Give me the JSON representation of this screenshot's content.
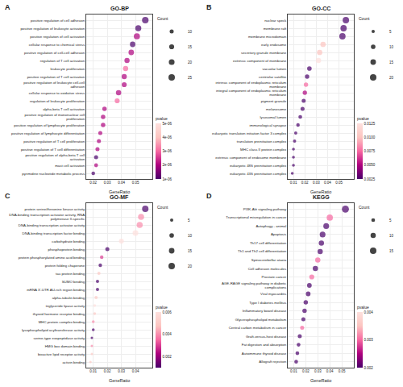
{
  "chart_data": [
    {
      "type": "scatter",
      "title": "GO-BP",
      "annotations": [
        "A"
      ],
      "orientation": "horizontal",
      "categories": [
        "positive regulation of cell adhesion",
        "positive regulation of leukocyte activation",
        "positive regulation of cell activation",
        "cellular response to chemical stress",
        "positive regulation of cell-cell adhesion",
        "regulation of T cell activation",
        "leukocyte proliferation",
        "positive regulation of T cell activation",
        "positive regulation of leukocyte cell-cell\nadhesion",
        "cellular response to oxidative stress",
        "regulation of leukocyte proliferation",
        "alpha-beta T cell activation",
        "positive regulation of mononuclear cell\nproliferation",
        "positive regulation of lymphocyte proliferation",
        "positive regulation of lymphocyte differentiation",
        "positive regulation of T cell proliferation",
        "positive regulation of T cell differentiation",
        "positive regulation of alpha-beta T cell\nactivation",
        "mast cell activation",
        "pyrimidine nucleotide metabolic process"
      ],
      "values": [
        0.057,
        0.052,
        0.051,
        0.048,
        0.047,
        0.044,
        0.043,
        0.042,
        0.042,
        0.038,
        0.037,
        0.028,
        0.027,
        0.027,
        0.025,
        0.024,
        0.023,
        0.022,
        0.022,
        0.02
      ],
      "sizes": [
        26,
        22,
        23,
        18,
        18,
        16,
        16,
        16,
        15,
        17,
        15,
        12,
        12,
        12,
        10,
        10,
        10,
        10,
        9,
        8
      ],
      "size_title": "Count",
      "size_legend": [
        10,
        15,
        20,
        25
      ],
      "color_values": [
        1e-06,
        1e-06,
        2e-06,
        1e-06,
        2e-06,
        2e-06,
        3e-06,
        2e-06,
        2e-06,
        2e-06,
        3e-06,
        2e-06,
        2e-06,
        2e-06,
        2e-06,
        2e-06,
        2e-06,
        1e-06,
        2e-06,
        1e-06
      ],
      "color_title": "pvalue",
      "color_range": [
        1e-06,
        5e-06
      ],
      "color_ticks": [
        {
          "value": 1e-06,
          "label": "1e-06"
        },
        {
          "value": 2e-06,
          "label": "2e-06"
        },
        {
          "value": 3e-06,
          "label": "3e-06"
        },
        {
          "value": 4e-06,
          "label": "4e-06"
        },
        {
          "value": 5e-06,
          "label": "5e-06"
        }
      ],
      "x_label": "GeneRatio",
      "xlim": [
        0.015,
        0.062
      ],
      "xticks": [
        0.02,
        0.03,
        0.04,
        0.05
      ],
      "grid": true
    },
    {
      "type": "scatter",
      "title": "GO-CC",
      "annotations": [
        "B"
      ],
      "orientation": "horizontal",
      "categories": [
        "nuclear speck",
        "membrane raft",
        "membrane microdomain",
        "early endosome",
        "secretory granule membrane",
        "extrinsic component of membrane",
        "vacuolar lumen",
        "centriolar satellite",
        "intrinsic component of endoplasmic reticulum\nmembrane",
        "integral component of endoplasmic reticulum\nmembrane",
        "pigment granule",
        "melanosome",
        "lysosomal lumen",
        "immunological synapse",
        "eukaryotic translation initiation factor 3 complex",
        "translation preinitiation complex",
        "MHC class II protein complex",
        "extrinsic component of endosome membrane",
        "eukaryotic 48S preinitiation complex",
        "eukaryotic 43S preinitiation complex"
      ],
      "values": [
        0.056,
        0.054,
        0.053,
        0.036,
        0.033,
        0.032,
        0.024,
        0.022,
        0.021,
        0.02,
        0.019,
        0.018,
        0.016,
        0.014,
        0.012,
        0.011,
        0.01,
        0.01,
        0.01,
        0.009
      ],
      "sizes": [
        20,
        19,
        19,
        14,
        14,
        13,
        10,
        9,
        9,
        9,
        8,
        8,
        7,
        6,
        5,
        5,
        4,
        4,
        4,
        4
      ],
      "size_title": "Count",
      "size_legend": [
        5,
        10,
        15,
        20
      ],
      "color_values": [
        0.0025,
        0.0025,
        0.0025,
        0.01,
        0.01,
        0.0125,
        0.0025,
        0.0025,
        0.0075,
        0.005,
        0.0025,
        0.0025,
        0.0025,
        0.0025,
        0.0025,
        0.0025,
        0.0025,
        0.0025,
        0.0025,
        0.0025
      ],
      "color_title": "pvalue",
      "color_range": [
        0.0025,
        0.0125
      ],
      "color_ticks": [
        0.0025,
        {
          "value": 0.005,
          "label": "0.0050"
        },
        0.0075,
        {
          "value": 0.01,
          "label": "0.0100"
        },
        0.0125
      ],
      "x_label": "GeneRatio",
      "xlim": [
        0.005,
        0.063
      ],
      "xticks": [
        0.01,
        0.02,
        0.03,
        0.04,
        0.05
      ],
      "grid": true
    },
    {
      "type": "scatter",
      "title": "GO-MF",
      "annotations": [
        "C"
      ],
      "orientation": "horizontal",
      "categories": [
        "protein serine/threonine kinase activity",
        "DNA-binding transcription activator activity, RNA\npolymerase II-specific",
        "DNA-binding transcription activator activity",
        "DNA-binding transcription factor binding",
        "carbohydrate binding",
        "phosphoprotein binding",
        "protein phosphorylated amino acid binding",
        "protein folding chaperone",
        "tau protein binding",
        "SUMO binding",
        "mRNA 3'-UTR AU-rich region binding",
        "alpha-tubulin binding",
        "triglyceride lipase activity",
        "thyroid hormone receptor binding",
        "MHC protein complex binding",
        "lysophospholipid acyltransferase activity",
        "serine-type exopeptidase activity",
        "HMG box domain binding",
        "bioactive lipid receptor activity",
        "activin binding"
      ],
      "values": [
        0.047,
        0.044,
        0.043,
        0.04,
        0.03,
        0.02,
        0.016,
        0.015,
        0.014,
        0.013,
        0.013,
        0.012,
        0.011,
        0.011,
        0.01,
        0.01,
        0.009,
        0.009,
        0.009,
        0.008
      ],
      "sizes": [
        20,
        18,
        18,
        16,
        12,
        8,
        6,
        6,
        5,
        5,
        5,
        5,
        4,
        4,
        4,
        4,
        3,
        3,
        3,
        3
      ],
      "size_title": "Count",
      "size_legend": [
        5,
        10,
        15,
        20
      ],
      "color_values": [
        0.001,
        0.004,
        0.004,
        0.006,
        0.006,
        0.001,
        0.003,
        0.001,
        0.005,
        0.001,
        0.001,
        0.005,
        0.006,
        0.005,
        0.004,
        0.001,
        0.001,
        0.004,
        0.005,
        0.005
      ],
      "color_title": "pvalue",
      "color_range": [
        0.001,
        0.006
      ],
      "color_ticks": [
        0.002,
        0.004,
        0.006
      ],
      "x_label": "GeneRatio",
      "xlim": [
        0.005,
        0.052
      ],
      "xticks": [
        0.01,
        0.02,
        0.03,
        0.04
      ],
      "grid": true
    },
    {
      "type": "scatter",
      "title": "KEGG",
      "annotations": [
        "D"
      ],
      "orientation": "horizontal",
      "categories": [
        "PI3K-Akt signaling pathway",
        "Transcriptional misregulation in cancer",
        "Autophagy - animal",
        "Apoptosis",
        "Th17 cell differentiation",
        "Th1 and Th2 cell differentiation",
        "Spinocerebellar ataxia",
        "Cell adhesion molecules",
        "Prostate cancer",
        "AGE-RAGE signaling pathway in diabetic\ncomplications",
        "Viral myocarditis",
        "Type I diabetes mellitus",
        "Inflammatory bowel disease",
        "Glycerophospholipid metabolism",
        "Central carbon metabolism in cancer",
        "Graft-versus-host disease",
        "Fat digestion and absorption",
        "Autoimmune thyroid disease",
        "Allograft rejection"
      ],
      "values": [
        0.053,
        0.04,
        0.037,
        0.034,
        0.033,
        0.032,
        0.03,
        0.028,
        0.025,
        0.023,
        0.022,
        0.02,
        0.019,
        0.018,
        0.017,
        0.015,
        0.014,
        0.013,
        0.012
      ],
      "sizes": [
        18,
        14,
        12,
        12,
        10,
        10,
        10,
        10,
        9,
        8,
        8,
        7,
        7,
        6,
        6,
        6,
        5,
        5,
        5
      ],
      "size_title": "Count",
      "size_legend": [
        5,
        10,
        15
      ],
      "color_values": [
        0.002,
        0.003,
        0.002,
        0.002,
        0.002,
        0.002,
        0.003,
        0.002,
        0.003,
        0.002,
        0.002,
        0.002,
        0.002,
        0.002,
        0.003,
        0.002,
        0.002,
        0.002,
        0.002
      ],
      "color_title": "pvalue",
      "color_range": [
        0.002,
        0.004
      ],
      "color_ticks": [
        0.002,
        0.003,
        0.004
      ],
      "x_label": "GeneRatio",
      "xlim": [
        0.005,
        0.06
      ],
      "xticks": [
        0.01,
        0.02,
        0.03,
        0.04,
        0.05
      ],
      "grid": true
    }
  ]
}
